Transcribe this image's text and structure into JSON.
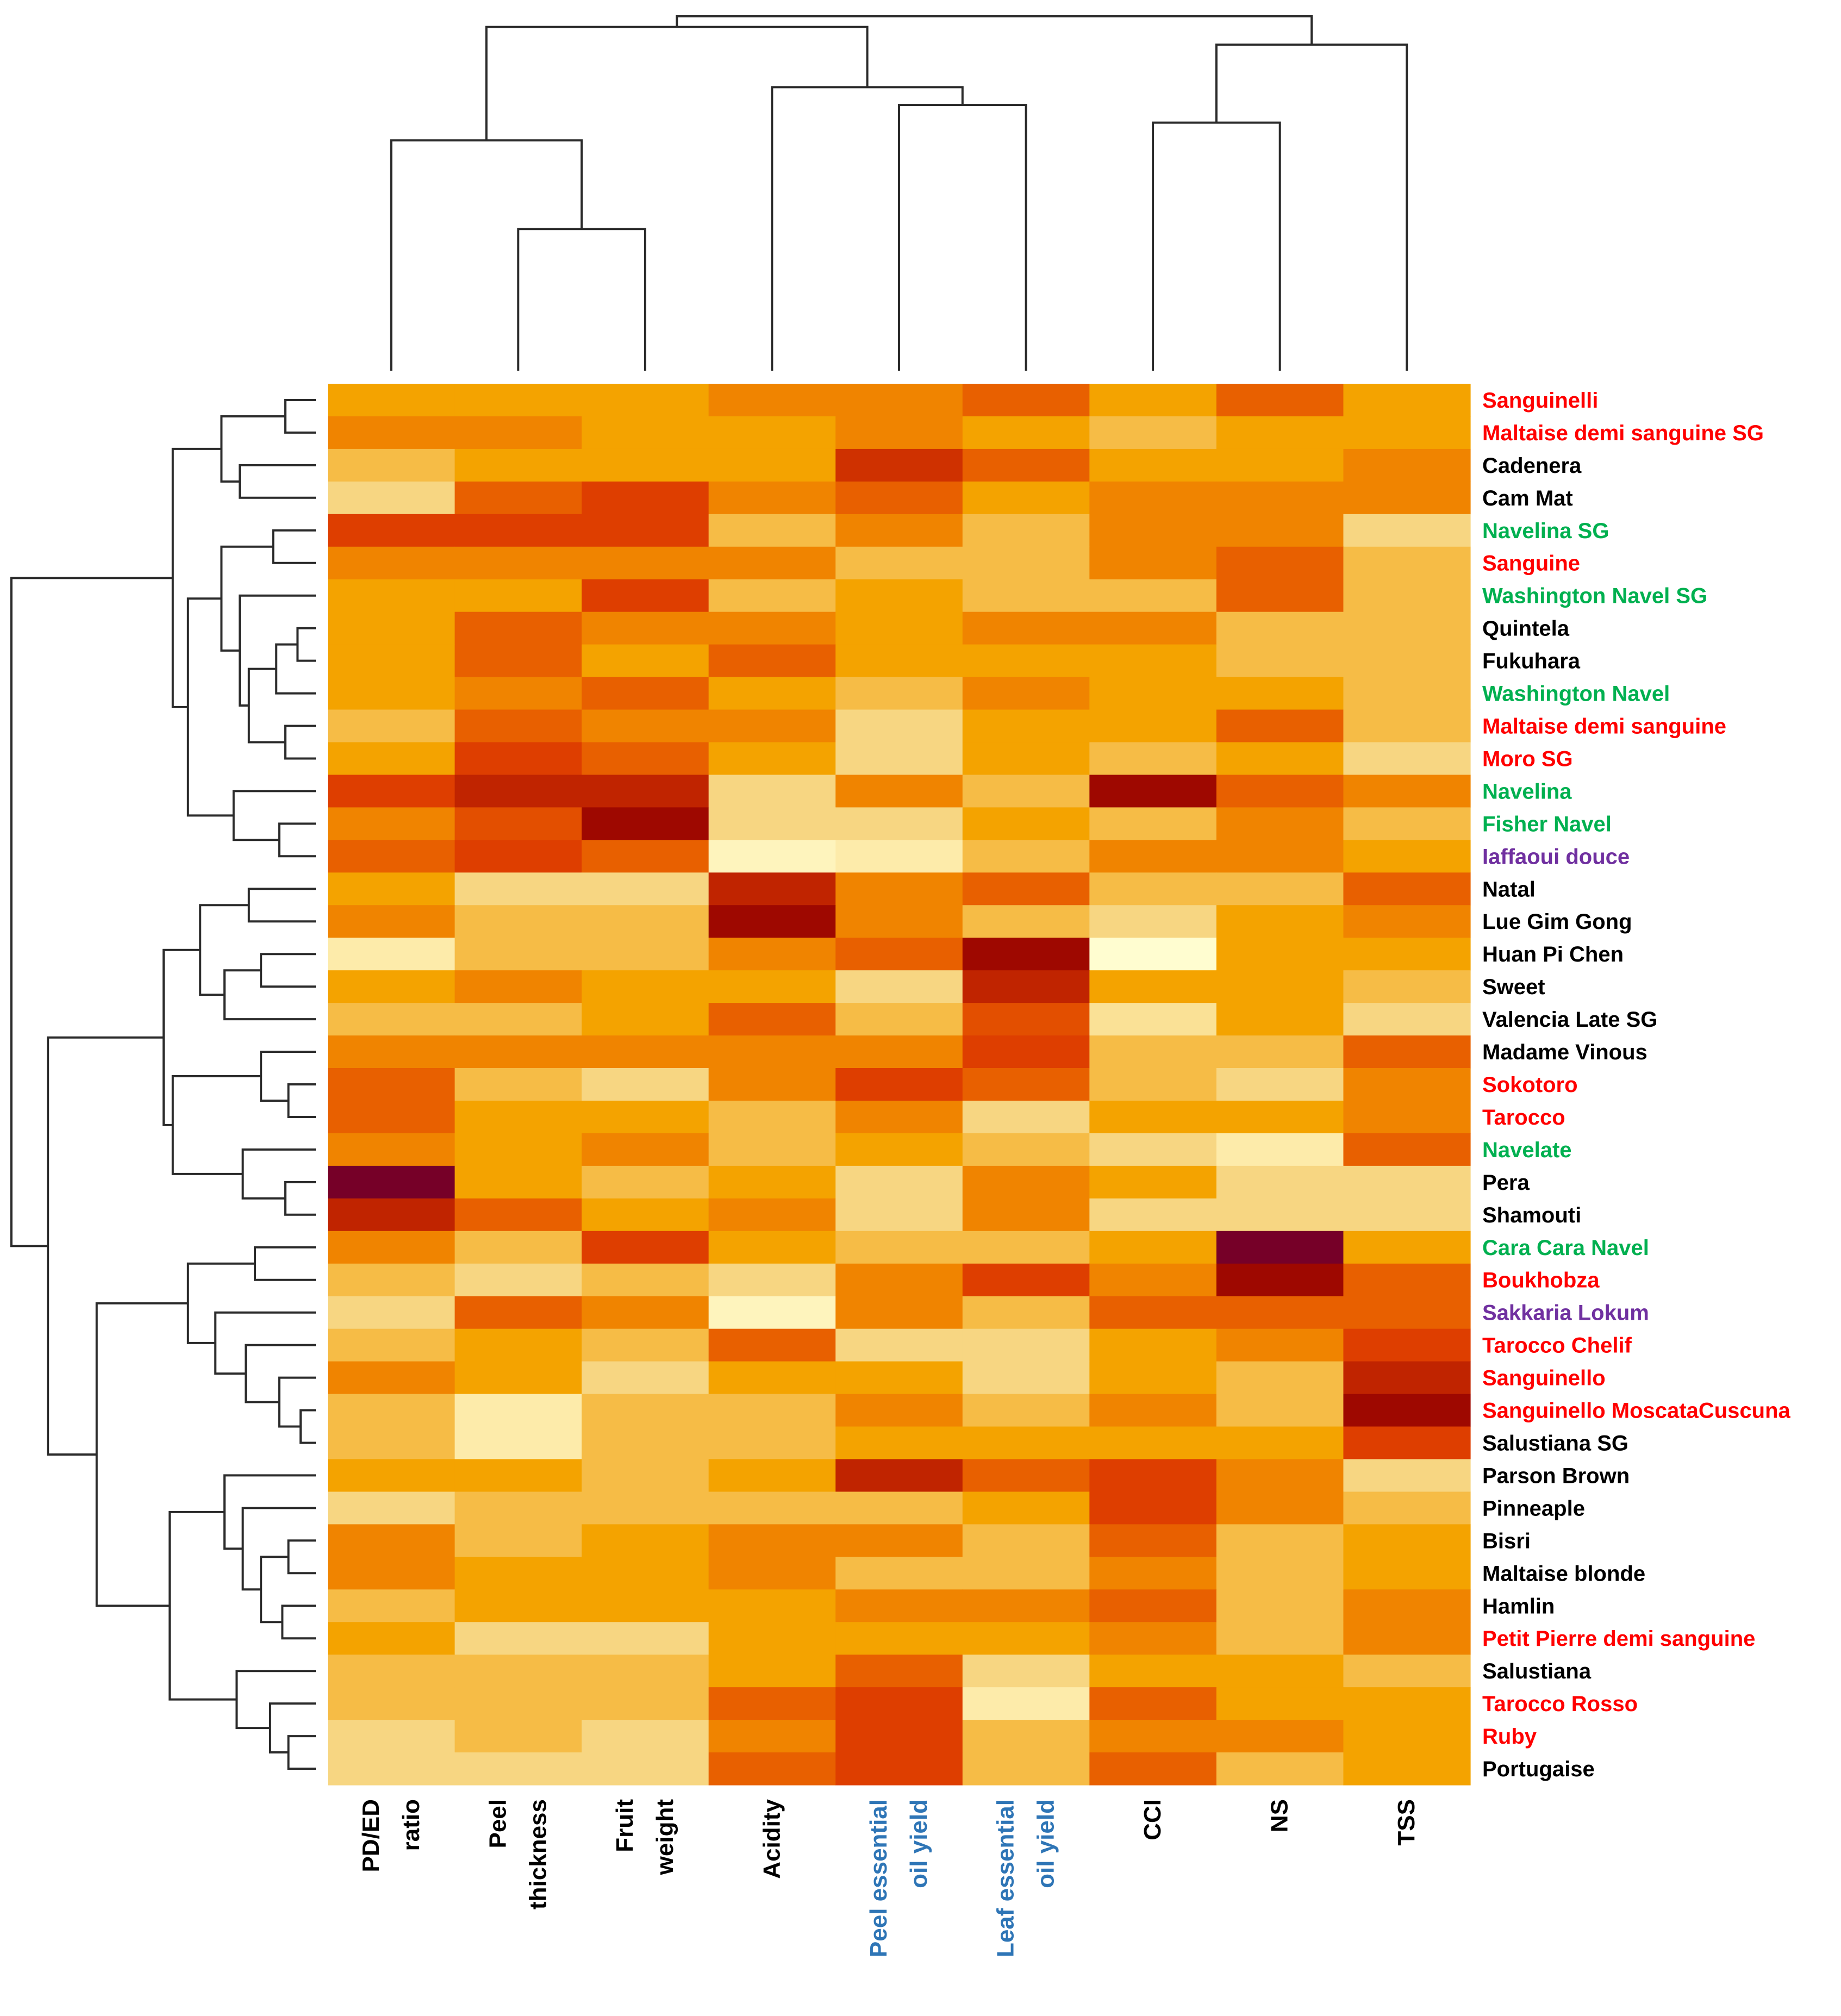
{
  "chart_data": {
    "type": "heatmap",
    "title": "",
    "colormap": "heat (low = light yellow, high = dark red)",
    "value_range": [
      0,
      1
    ],
    "columns": [
      {
        "lines": [
          "PD/ED",
          "ratio"
        ],
        "color": "#000000"
      },
      {
        "lines": [
          "Peel",
          "thickness"
        ],
        "color": "#000000"
      },
      {
        "lines": [
          "Fruit",
          "weight"
        ],
        "color": "#000000"
      },
      {
        "lines": [
          "Acidity"
        ],
        "color": "#000000"
      },
      {
        "lines": [
          "Peel essential",
          "oil yield"
        ],
        "color": "#2e75b6"
      },
      {
        "lines": [
          "Leaf essential",
          "oil yield"
        ],
        "color": "#2e75b6"
      },
      {
        "lines": [
          "CCI"
        ],
        "color": "#000000"
      },
      {
        "lines": [
          "NS"
        ],
        "color": "#000000"
      },
      {
        "lines": [
          "TSS"
        ],
        "color": "#000000"
      }
    ],
    "rows": [
      {
        "label": "Sanguinelli",
        "group": "blood"
      },
      {
        "label": "Maltaise demi sanguine SG",
        "group": "blood"
      },
      {
        "label": "Cadenera",
        "group": "common"
      },
      {
        "label": "Cam Mat",
        "group": "common"
      },
      {
        "label": "Navelina SG",
        "group": "navel"
      },
      {
        "label": "Sanguine",
        "group": "blood"
      },
      {
        "label": "Washington Navel SG",
        "group": "navel"
      },
      {
        "label": "Quintela",
        "group": "common"
      },
      {
        "label": "Fukuhara",
        "group": "common"
      },
      {
        "label": "Washington Navel",
        "group": "navel"
      },
      {
        "label": "Maltaise demi sanguine",
        "group": "blood"
      },
      {
        "label": "Moro SG",
        "group": "blood"
      },
      {
        "label": "Navelina",
        "group": "navel"
      },
      {
        "label": "Fisher Navel",
        "group": "navel"
      },
      {
        "label": "Iaffaoui douce",
        "group": "acidless"
      },
      {
        "label": "Natal",
        "group": "common"
      },
      {
        "label": "Lue Gim Gong",
        "group": "common"
      },
      {
        "label": "Huan Pi Chen",
        "group": "common"
      },
      {
        "label": "Sweet",
        "group": "common"
      },
      {
        "label": "Valencia Late SG",
        "group": "common"
      },
      {
        "label": "Madame Vinous",
        "group": "common"
      },
      {
        "label": "Sokotoro",
        "group": "blood"
      },
      {
        "label": "Tarocco",
        "group": "blood"
      },
      {
        "label": "Navelate",
        "group": "navel"
      },
      {
        "label": "Pera",
        "group": "common"
      },
      {
        "label": "Shamouti",
        "group": "common"
      },
      {
        "label": "Cara Cara Navel",
        "group": "navel"
      },
      {
        "label": "Boukhobza",
        "group": "blood"
      },
      {
        "label": "Sakkaria Lokum",
        "group": "acidless"
      },
      {
        "label": "Tarocco Chelif",
        "group": "blood"
      },
      {
        "label": "Sanguinello",
        "group": "blood"
      },
      {
        "label": "Sanguinello MoscataCuscuna",
        "group": "blood"
      },
      {
        "label": "Salustiana SG",
        "group": "common"
      },
      {
        "label": "Parson Brown",
        "group": "common"
      },
      {
        "label": "Pinneaple",
        "group": "common"
      },
      {
        "label": "Bisri",
        "group": "common"
      },
      {
        "label": "Maltaise blonde",
        "group": "common"
      },
      {
        "label": "Hamlin",
        "group": "common"
      },
      {
        "label": "Petit Pierre demi sanguine",
        "group": "blood"
      },
      {
        "label": "Salustiana",
        "group": "common"
      },
      {
        "label": "Tarocco Rosso",
        "group": "blood"
      },
      {
        "label": "Ruby",
        "group": "blood"
      },
      {
        "label": "Portugaise",
        "group": "common"
      }
    ],
    "group_colors": {
      "blood": "#ff0000",
      "navel": "#00b050",
      "acidless": "#7030a0",
      "common": "#000000"
    },
    "values": [
      [
        0.4,
        0.4,
        0.4,
        0.5,
        0.5,
        0.6,
        0.4,
        0.6,
        0.4
      ],
      [
        0.5,
        0.5,
        0.4,
        0.4,
        0.5,
        0.4,
        0.3,
        0.4,
        0.4
      ],
      [
        0.3,
        0.4,
        0.4,
        0.4,
        0.75,
        0.6,
        0.4,
        0.4,
        0.5
      ],
      [
        0.2,
        0.6,
        0.7,
        0.5,
        0.6,
        0.4,
        0.5,
        0.5,
        0.5
      ],
      [
        0.7,
        0.7,
        0.7,
        0.3,
        0.5,
        0.3,
        0.5,
        0.5,
        0.2
      ],
      [
        0.5,
        0.5,
        0.5,
        0.5,
        0.3,
        0.3,
        0.5,
        0.6,
        0.3
      ],
      [
        0.4,
        0.4,
        0.7,
        0.3,
        0.4,
        0.3,
        0.3,
        0.6,
        0.3
      ],
      [
        0.4,
        0.6,
        0.5,
        0.5,
        0.4,
        0.5,
        0.5,
        0.3,
        0.3
      ],
      [
        0.4,
        0.6,
        0.4,
        0.6,
        0.4,
        0.4,
        0.4,
        0.3,
        0.3
      ],
      [
        0.4,
        0.5,
        0.6,
        0.4,
        0.3,
        0.5,
        0.4,
        0.4,
        0.3
      ],
      [
        0.3,
        0.6,
        0.5,
        0.5,
        0.2,
        0.4,
        0.4,
        0.6,
        0.3
      ],
      [
        0.4,
        0.7,
        0.6,
        0.4,
        0.2,
        0.4,
        0.3,
        0.4,
        0.2
      ],
      [
        0.7,
        0.8,
        0.8,
        0.2,
        0.5,
        0.3,
        0.9,
        0.6,
        0.5
      ],
      [
        0.5,
        0.65,
        0.9,
        0.2,
        0.2,
        0.4,
        0.3,
        0.5,
        0.3
      ],
      [
        0.6,
        0.7,
        0.6,
        0.05,
        0.1,
        0.3,
        0.5,
        0.5,
        0.4
      ],
      [
        0.4,
        0.2,
        0.2,
        0.8,
        0.5,
        0.6,
        0.3,
        0.3,
        0.6
      ],
      [
        0.5,
        0.3,
        0.3,
        0.9,
        0.5,
        0.3,
        0.2,
        0.4,
        0.5
      ],
      [
        0.1,
        0.3,
        0.3,
        0.5,
        0.6,
        0.9,
        0.0,
        0.4,
        0.4
      ],
      [
        0.4,
        0.5,
        0.4,
        0.4,
        0.2,
        0.8,
        0.4,
        0.4,
        0.3
      ],
      [
        0.3,
        0.3,
        0.4,
        0.6,
        0.3,
        0.65,
        0.15,
        0.4,
        0.2
      ],
      [
        0.5,
        0.5,
        0.5,
        0.5,
        0.5,
        0.7,
        0.3,
        0.3,
        0.6
      ],
      [
        0.6,
        0.3,
        0.2,
        0.5,
        0.7,
        0.6,
        0.3,
        0.2,
        0.5
      ],
      [
        0.6,
        0.4,
        0.4,
        0.3,
        0.5,
        0.2,
        0.4,
        0.4,
        0.5
      ],
      [
        0.5,
        0.4,
        0.5,
        0.3,
        0.4,
        0.3,
        0.2,
        0.1,
        0.6
      ],
      [
        1.0,
        0.4,
        0.3,
        0.4,
        0.2,
        0.5,
        0.4,
        0.2,
        0.2
      ],
      [
        0.8,
        0.6,
        0.4,
        0.5,
        0.2,
        0.5,
        0.2,
        0.2,
        0.2
      ],
      [
        0.5,
        0.3,
        0.7,
        0.4,
        0.3,
        0.3,
        0.4,
        1.0,
        0.4
      ],
      [
        0.3,
        0.2,
        0.3,
        0.2,
        0.5,
        0.7,
        0.5,
        0.9,
        0.6
      ],
      [
        0.2,
        0.6,
        0.5,
        0.05,
        0.5,
        0.3,
        0.6,
        0.6,
        0.6
      ],
      [
        0.3,
        0.4,
        0.3,
        0.6,
        0.2,
        0.2,
        0.4,
        0.5,
        0.7
      ],
      [
        0.5,
        0.4,
        0.2,
        0.4,
        0.4,
        0.2,
        0.4,
        0.3,
        0.8
      ],
      [
        0.3,
        0.1,
        0.3,
        0.3,
        0.5,
        0.3,
        0.5,
        0.3,
        0.9
      ],
      [
        0.3,
        0.1,
        0.3,
        0.3,
        0.4,
        0.4,
        0.4,
        0.4,
        0.7
      ],
      [
        0.4,
        0.4,
        0.3,
        0.4,
        0.8,
        0.6,
        0.7,
        0.5,
        0.2
      ],
      [
        0.2,
        0.3,
        0.3,
        0.3,
        0.3,
        0.4,
        0.7,
        0.5,
        0.3
      ],
      [
        0.5,
        0.3,
        0.4,
        0.5,
        0.5,
        0.3,
        0.6,
        0.3,
        0.4
      ],
      [
        0.5,
        0.4,
        0.4,
        0.5,
        0.3,
        0.3,
        0.5,
        0.3,
        0.4
      ],
      [
        0.3,
        0.4,
        0.4,
        0.4,
        0.5,
        0.5,
        0.6,
        0.3,
        0.5
      ],
      [
        0.4,
        0.2,
        0.2,
        0.4,
        0.4,
        0.4,
        0.5,
        0.3,
        0.5
      ],
      [
        0.3,
        0.3,
        0.3,
        0.4,
        0.6,
        0.2,
        0.4,
        0.4,
        0.3
      ],
      [
        0.3,
        0.3,
        0.3,
        0.6,
        0.7,
        0.1,
        0.6,
        0.4,
        0.4
      ],
      [
        0.2,
        0.3,
        0.2,
        0.5,
        0.7,
        0.3,
        0.5,
        0.5,
        0.4
      ],
      [
        0.2,
        0.2,
        0.2,
        0.6,
        0.7,
        0.3,
        0.6,
        0.3,
        0.4
      ]
    ],
    "column_dendrogram_order": [
      "PD/ED ratio",
      "Peel thickness",
      "Fruit weight",
      "Acidity",
      "Peel essential oil yield",
      "Leaf essential oil yield",
      "CCI",
      "NS",
      "TSS"
    ],
    "row_dendrogram": "hierarchical clustering of 43 cultivars"
  }
}
